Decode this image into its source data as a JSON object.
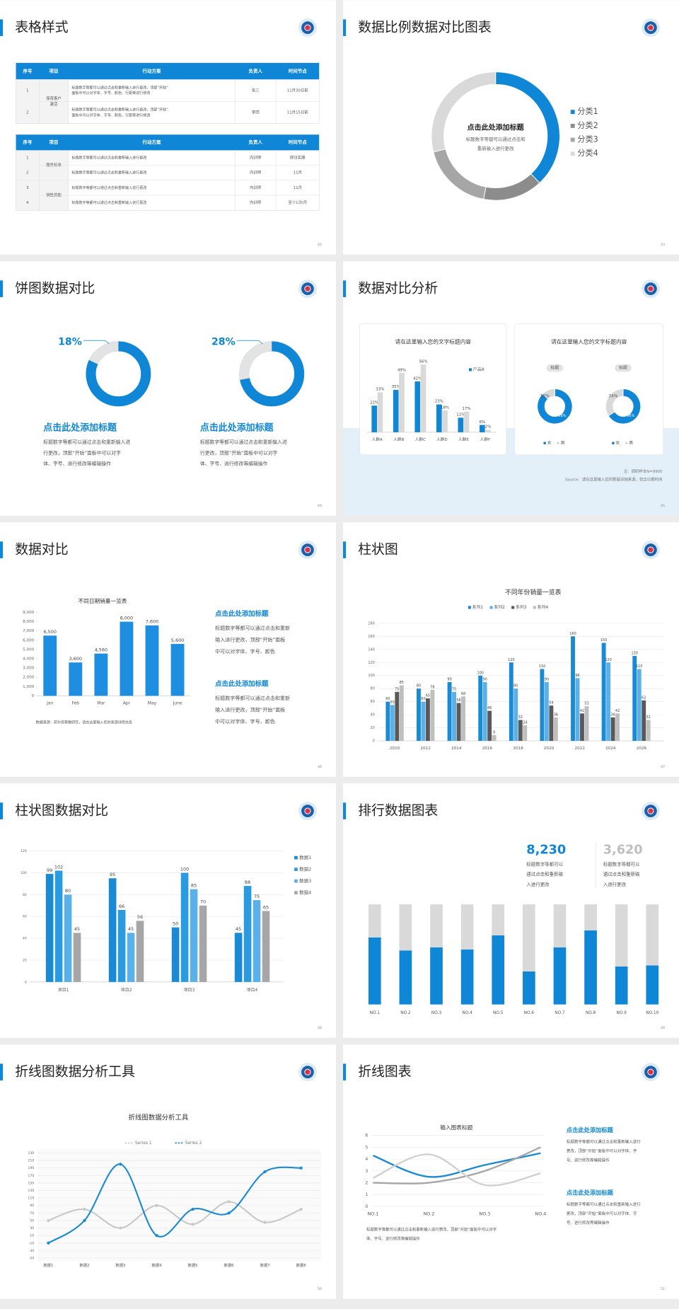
{
  "slides": [
    {
      "title": "表格样式",
      "page": "42",
      "tables": [
        {
          "header": [
            "序号",
            "项目",
            "行动方案",
            "负责人",
            "时间节点"
          ],
          "groups": [
            {
              "item": [
                "保育客户",
                "激活"
              ],
              "rows": [
                {
                  "no": "1",
                  "action": [
                    "标题数字等都可以通过点击和重新输入进行更改，顶部“开始”",
                    "面板中可以对字体、字号、颜色、行距等进行修改"
                  ],
                  "owner": "张三",
                  "time": "11月30日前"
                },
                {
                  "no": "2",
                  "action": [
                    "标题数字等都可以通过点击和重新输入进行更改，顶部“开始”",
                    "面板中可以对字体、字号、颜色、行距等进行修改"
                  ],
                  "owner": "李四",
                  "time": "11月15日前"
                }
              ]
            }
          ]
        },
        {
          "header": [
            "序号",
            "项目",
            "行动方案",
            "负责人",
            "时间节点"
          ],
          "groups": [
            {
              "item": [
                "服务标准"
              ],
              "rows": [
                {
                  "no": "1",
                  "action": [
                    "标题数字等都可以通过点击和重新输入进行更改"
                  ],
                  "owner": "内训师",
                  "time": "即日实施"
                },
                {
                  "no": "2",
                  "action": [
                    "标题数字等都可以通过点击和重新输入进行更改"
                  ],
                  "owner": "内训师",
                  "time": "11月"
                }
              ]
            },
            {
              "item": [
                "销售技能"
              ],
              "rows": [
                {
                  "no": "3",
                  "action": [
                    "标题数字等都可以通过点击和重新输入进行更改"
                  ],
                  "owner": "内训师",
                  "time": "11月"
                },
                {
                  "no": "4",
                  "action": [
                    "标题数字等都可以通过点击和重新输入进行更改"
                  ],
                  "owner": "内训师",
                  "time": "至少1次/月"
                }
              ]
            }
          ]
        }
      ]
    },
    {
      "title": "数据比例数据对比图表",
      "page": "43",
      "chart": {
        "type": "donut",
        "center_title": "点击此处添加标题",
        "center_text": [
          "标题数字等都可以通过点击和",
          "重新输入进行更改"
        ],
        "categories": [
          "分类1",
          "分类2",
          "分类3",
          "分类4"
        ],
        "values": [
          38,
          15,
          18,
          29
        ],
        "colors": [
          "#0f86d6",
          "#8c8c8c",
          "#a6a6a6",
          "#d9d9d9"
        ]
      }
    },
    {
      "title": "饼图数据对比",
      "page": "44",
      "items": [
        {
          "chart": {
            "type": "donut",
            "values": [
              18
            ],
            "value_labels": [
              "18%"
            ],
            "colors": [
              "#e3e3e3"
            ],
            "track_color": "#0f86d6"
          },
          "heading": "点击此处添加标题",
          "text": [
            "标题数字等都可以通过点击和重新输入进",
            "行更改，顶部“开始”面板中可以对字",
            "体、字号、进行修改等编辑操作"
          ]
        },
        {
          "chart": {
            "type": "donut",
            "values": [
              28
            ],
            "value_labels": [
              "28%"
            ],
            "colors": [
              "#e3e3e3"
            ],
            "track_color": "#0f86d6"
          },
          "heading": "点击此处添加标题",
          "text": [
            "标题数字等都可以通过点击和重新输入进",
            "行更改，顶部“开始”面板中可以对字",
            "体、字号、进行修改等编辑操作"
          ]
        }
      ]
    },
    {
      "title": "数据对比分析",
      "page": "45",
      "cards": [
        {
          "heading": "请在这里输入您的文字标题内容",
          "chart": {
            "type": "bar",
            "categories": [
              "人群A",
              "人群B",
              "人群C",
              "人群D",
              "人群E",
              "人群F"
            ],
            "series": [
              {
                "name": "产品A",
                "color": "#0f86d6",
                "values": [
                  22,
                  35,
                  42,
                  23,
                  12,
                  6
                ],
                "value_labels": [
                  "22%",
                  "35%",
                  "42%",
                  "23%",
                  "12%",
                  "6%"
                ]
              },
              {
                "color": "#d9d9d9",
                "values": [
                  33,
                  49,
                  56,
                  18,
                  17,
                  2
                ],
                "value_labels": [
                  "33%",
                  "49%",
                  "56%",
                  "18%",
                  "17%",
                  "2%"
                ]
              }
            ],
            "ylim": [
              0,
              60
            ]
          }
        },
        {
          "heading": "请在这里输入您的文字标题内容",
          "chart": {
            "type": "donut",
            "legend": [
              "女",
              "男"
            ],
            "colors": [
              "#0f86d6",
              "#d9d9d9"
            ],
            "donuts": [
              {
                "tag": "标题",
                "values": [
                  88,
                  12
                ],
                "value_labels": [
                  "88%",
                  "12%"
                ]
              },
              {
                "tag": "标题",
                "values": [
                  66,
                  34
                ],
                "value_labels": [
                  "66%",
                  "34%"
                ]
              }
            ]
          }
        }
      ],
      "notes": [
        "注：调研样本N=9900",
        "Source：请在这里输入您的数据详细来源，但含日期时间"
      ]
    },
    {
      "title": "数据对比",
      "page": "46",
      "chart": {
        "type": "bar",
        "title": "不同日期销量一览表",
        "categories": [
          "Jan",
          "Feb",
          "Mar",
          "Apr",
          "May",
          "June"
        ],
        "series": [
          {
            "color": "#1e8fe0",
            "values": [
              6500,
              3600,
              4560,
              8000,
              7600,
              5600
            ],
            "value_labels": [
              "6,500",
              "3,600",
              "4,560",
              "8,000",
              "7,600",
              "5,600"
            ]
          }
        ],
        "ylim": [
          0,
          9000
        ],
        "yticks": [
          0,
          {
            "value": 1000,
            "label": "1,000"
          },
          {
            "value": 2000,
            "label": "2,000"
          },
          {
            "value": 3000,
            "label": "3,000"
          },
          {
            "value": 4000,
            "label": "4,000"
          },
          {
            "value": 5000,
            "label": "5,000"
          },
          {
            "value": 6000,
            "label": "6,000"
          },
          {
            "value": 7000,
            "label": "7,000"
          },
          {
            "value": 8000,
            "label": "8,000"
          },
          {
            "value": 9000,
            "label": "9,000"
          }
        ],
        "grid": false,
        "source": "数据来源：邦尔高等教研究，请在这里输入您的来源详情信息"
      },
      "blocks": [
        {
          "heading": "点击此处添加标题",
          "text": [
            "标题数字等都可以通过点击和重新",
            "输入进行更改，顶部“开始”面板",
            "中可以对字体、字号、颜色"
          ]
        },
        {
          "heading": "点击此处添加标题",
          "text": [
            "标题数字等都可以通过点击和重新",
            "输入进行更改，顶部“开始”面板",
            "中可以对字体、字号、颜色"
          ]
        }
      ]
    },
    {
      "title": "柱状图",
      "page": "47",
      "chart": {
        "type": "bar",
        "title": "不同年份销量一览表",
        "categories": [
          "2010",
          "2012",
          "2014",
          "2016",
          "2018",
          "2020",
          "2022",
          "2024",
          "2026"
        ],
        "series": [
          {
            "name": "系列1",
            "color": "#1a8ad4",
            "values": [
              60,
              80,
              90,
              100,
              120,
              110,
              160,
              150,
              130
            ]
          },
          {
            "name": "系列2",
            "color": "#5ab0e8",
            "values": [
              55,
              60,
              75,
              90,
              80,
              90,
              96,
              120,
              110
            ]
          },
          {
            "name": "系列3",
            "color": "#595959",
            "values": [
              75,
              65,
              58,
              46,
              32,
              54,
              42,
              36,
              62
            ]
          },
          {
            "name": "系列4",
            "color": "#bfbfbf",
            "values": [
              85,
              78,
              68,
              9,
              24,
              36,
              53,
              42,
              32
            ]
          }
        ],
        "ylim": [
          0,
          180
        ],
        "yticks": [
          0,
          20,
          40,
          60,
          80,
          100,
          120,
          140,
          160,
          180
        ],
        "grid": true
      }
    },
    {
      "title": "柱状图数据对比",
      "page": "48",
      "chart": {
        "type": "bar",
        "categories": [
          "项目1",
          "项目2",
          "项目3",
          "项目4"
        ],
        "series": [
          {
            "name": "数据1",
            "color": "#1a8ad4",
            "values": [
              99,
              95,
              50,
              45
            ]
          },
          {
            "name": "数据2",
            "color": "#2a9be0",
            "values": [
              102,
              66,
              100,
              88
            ]
          },
          {
            "name": "数据3",
            "color": "#5ab0e8",
            "values": [
              80,
              45,
              85,
              75
            ]
          },
          {
            "name": "数据4",
            "color": "#a6a6a6",
            "values": [
              45,
              56,
              70,
              65
            ]
          }
        ],
        "ylim": [
          0,
          120
        ],
        "yticks": [
          0,
          20,
          40,
          60,
          80,
          100,
          120
        ],
        "grid": true
      }
    },
    {
      "title": "排行数据图表",
      "page": "49",
      "stats": [
        {
          "value": "8,230",
          "color": "#0f86d6",
          "text": [
            "标题数字等都可以",
            "通过点击和重新输",
            "入进行更改"
          ]
        },
        {
          "value": "3,620",
          "color": "#bfbfbf",
          "text": [
            "标题数字等都可以",
            "通过点击和重新输",
            "入进行更改"
          ]
        }
      ],
      "chart": {
        "type": "stacked_bar",
        "categories": [
          "NO.1",
          "NO.2",
          "NO.3",
          "NO.4",
          "NO.5",
          "NO.6",
          "NO.7",
          "NO.8",
          "NO.9",
          "NO.10"
        ],
        "series": [
          {
            "color": "#0f86d6",
            "values": [
              67,
              54,
              57,
              55,
              69,
              33,
              57,
              74,
              38,
              39
            ]
          },
          {
            "color": "#d9d9d9",
            "values": [
              33,
              46,
              43,
              45,
              31,
              67,
              43,
              26,
              62,
              61
            ]
          }
        ],
        "ylim": [
          0,
          100
        ]
      }
    },
    {
      "title": "折线图数据分析工具",
      "page": "50",
      "chart": {
        "type": "line",
        "smooth": true,
        "title": "折线图数据分析工具",
        "categories": [
          "数据1",
          "数据2",
          "数据3",
          "数据4",
          "数据5",
          "数据6",
          "数据7",
          "数据8"
        ],
        "series": [
          {
            "name": "Series 1",
            "color": "#c8c8c8",
            "values": [
              50,
              80,
              30,
              90,
              40,
              100,
              45,
              80
            ]
          },
          {
            "name": "Series 2",
            "color": "#1a8ad4",
            "values": [
              -10,
              50,
              200,
              10,
              80,
              70,
              180,
              190
            ]
          }
        ],
        "ylim": [
          -50,
          230
        ],
        "yticks": [
          -50,
          -30,
          -10,
          10,
          30,
          50,
          70,
          90,
          110,
          130,
          150,
          170,
          190,
          210,
          230
        ],
        "grid": true
      }
    },
    {
      "title": "折线图表",
      "page": "51",
      "chart": {
        "type": "line",
        "smooth": true,
        "title": "输入图表标题",
        "categories": [
          "NO.1",
          "NO.2",
          "NO.3",
          "NO.4"
        ],
        "series": [
          {
            "color": "#1a8ad4",
            "values": [
              4.3,
              2.5,
              3.5,
              4.5
            ]
          },
          {
            "color": "#a6a6a6",
            "values": [
              2,
              2,
              3,
              5
            ]
          },
          {
            "color": "#d0d0d0",
            "values": [
              2.4,
              4.4,
              1.8,
              2.8
            ]
          }
        ],
        "ylim": [
          0,
          6
        ],
        "yticks": [
          0,
          1,
          2,
          3,
          4,
          5,
          6
        ],
        "grid": true,
        "note": [
          "标题数字等都可以通过点击和重新输入进行更改，顶部“开始”面板中可以对字",
          "体、字号、进行修改等编辑操作"
        ]
      },
      "blocks": [
        {
          "heading": "点击此处添加标题",
          "text": [
            "标题数字等都可以通过点击和重新输入进行",
            "更改，顶部“开始”面板中可以对字体、字",
            "号、进行修改等编辑操作"
          ]
        },
        {
          "heading": "点击此处添加标题",
          "text": [
            "标题数字等都可以通过点击和重新输入进行",
            "更改，顶部“开始”面板中可以对字体、字",
            "号、进行修改等编辑操作"
          ]
        }
      ]
    }
  ]
}
